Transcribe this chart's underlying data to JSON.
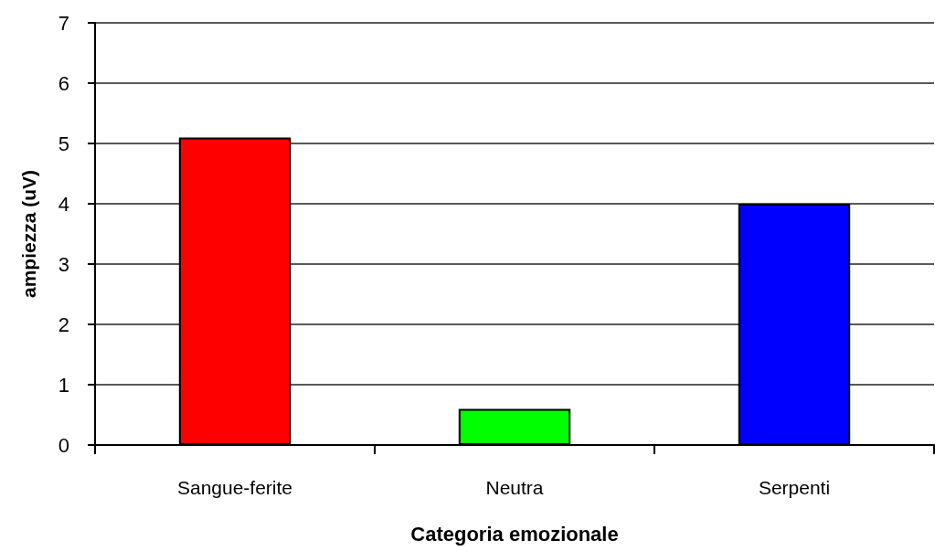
{
  "chart_data": {
    "type": "bar",
    "xlabel": "Categoria emozionale",
    "ylabel": "ampiezza (uV)",
    "categories": [
      "Sangue-ferite",
      "Neutra",
      "Serpenti"
    ],
    "values": [
      5.1,
      0.6,
      4.0
    ],
    "colors": [
      "#ff0000",
      "#00ff00",
      "#0000ff"
    ],
    "ylim": [
      0,
      7
    ],
    "yticks": [
      0,
      1,
      2,
      3,
      4,
      5,
      6,
      7
    ],
    "grid": "y"
  }
}
